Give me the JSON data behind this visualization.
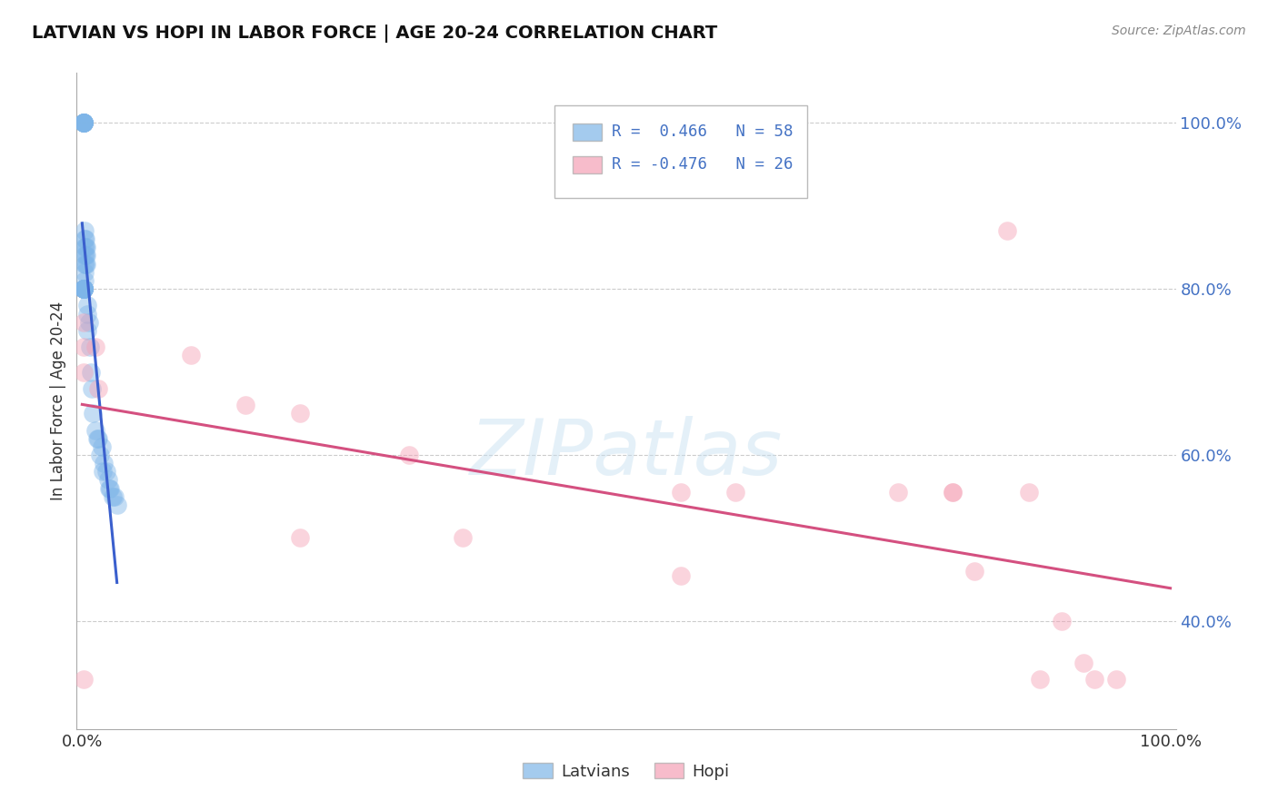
{
  "title": "LATVIAN VS HOPI IN LABOR FORCE | AGE 20-24 CORRELATION CHART",
  "source": "Source: ZipAtlas.com",
  "ylabel": "In Labor Force | Age 20-24",
  "legend_latvians_R": "R =  0.466",
  "legend_latvians_N": "N = 58",
  "legend_hopi_R": "R = -0.476",
  "legend_hopi_N": "N = 26",
  "latvians_color": "#7EB5E8",
  "hopi_color": "#F4A0B5",
  "trend_latvians_color": "#3A5FCD",
  "trend_hopi_color": "#D45080",
  "accent_color": "#4472C4",
  "watermark": "ZIPatlas",
  "latvians_x": [
    0.001,
    0.001,
    0.001,
    0.001,
    0.001,
    0.001,
    0.001,
    0.001,
    0.001,
    0.001,
    0.001,
    0.001,
    0.001,
    0.001,
    0.001,
    0.001,
    0.001,
    0.001,
    0.001,
    0.001,
    0.001,
    0.001,
    0.002,
    0.002,
    0.002,
    0.002,
    0.002,
    0.002,
    0.002,
    0.003,
    0.003,
    0.003,
    0.003,
    0.004,
    0.004,
    0.004,
    0.005,
    0.005,
    0.005,
    0.006,
    0.007,
    0.008,
    0.009,
    0.01,
    0.012,
    0.015,
    0.018,
    0.02,
    0.022,
    0.024,
    0.026,
    0.03,
    0.032,
    0.014,
    0.016,
    0.019,
    0.025,
    0.028
  ],
  "latvians_y": [
    1.0,
    1.0,
    1.0,
    1.0,
    1.0,
    1.0,
    1.0,
    1.0,
    1.0,
    1.0,
    0.8,
    0.8,
    0.8,
    0.8,
    0.8,
    0.8,
    0.8,
    0.8,
    0.8,
    0.8,
    0.8,
    0.8,
    0.87,
    0.86,
    0.85,
    0.84,
    0.83,
    0.82,
    0.81,
    0.86,
    0.85,
    0.84,
    0.83,
    0.85,
    0.84,
    0.83,
    0.78,
    0.77,
    0.75,
    0.76,
    0.73,
    0.7,
    0.68,
    0.65,
    0.63,
    0.62,
    0.61,
    0.59,
    0.58,
    0.57,
    0.56,
    0.55,
    0.54,
    0.62,
    0.6,
    0.58,
    0.56,
    0.55
  ],
  "hopi_x": [
    0.001,
    0.001,
    0.001,
    0.001,
    0.012,
    0.015,
    0.1,
    0.15,
    0.2,
    0.3,
    0.55,
    0.6,
    0.75,
    0.8,
    0.82,
    0.87,
    0.9,
    0.92,
    0.93,
    0.95,
    0.85,
    0.88,
    0.8,
    0.55,
    0.2,
    0.35
  ],
  "hopi_y": [
    0.76,
    0.73,
    0.7,
    0.33,
    0.73,
    0.68,
    0.72,
    0.66,
    0.65,
    0.6,
    0.555,
    0.555,
    0.555,
    0.555,
    0.46,
    0.555,
    0.4,
    0.35,
    0.33,
    0.33,
    0.87,
    0.33,
    0.555,
    0.455,
    0.5,
    0.5
  ],
  "xmin": -0.005,
  "xmax": 1.005,
  "ymin": 0.27,
  "ymax": 1.06,
  "yticks": [
    0.4,
    0.6,
    0.8,
    1.0
  ],
  "ytick_labels": [
    "40.0%",
    "60.0%",
    "80.0%",
    "100.0%"
  ],
  "xtick_labels": [
    "0.0%",
    "100.0%"
  ]
}
